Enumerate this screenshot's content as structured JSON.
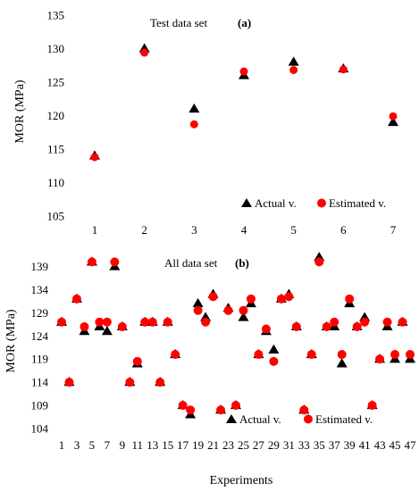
{
  "chart_data": [
    {
      "type": "scatter",
      "panel_label": "(a)",
      "title": "Test data set",
      "xlabel": "",
      "ylabel": "MOR (MPa)",
      "ylim": [
        105,
        135
      ],
      "yticks": [
        105,
        110,
        115,
        120,
        125,
        130,
        135
      ],
      "x": [
        1,
        2,
        3,
        4,
        5,
        6,
        7
      ],
      "xticks": [
        "1",
        "2",
        "3",
        "4",
        "5",
        "6",
        "7"
      ],
      "grid": false,
      "legend_position": "bottom-right",
      "series": [
        {
          "name": "Actual v.",
          "marker": "triangle",
          "color": "#000000",
          "values": [
            114,
            130,
            121,
            126,
            128,
            127,
            119
          ]
        },
        {
          "name": "Estimated v.",
          "marker": "circle",
          "color": "#ff0000",
          "values": [
            113.8,
            129.4,
            118.7,
            126.6,
            126.8,
            126.9,
            119.9
          ]
        }
      ]
    },
    {
      "type": "scatter",
      "panel_label": "(b)",
      "title": "All data set",
      "xlabel": "Experiments",
      "ylabel": "MOR (MPa)",
      "ylim": [
        104,
        142
      ],
      "yticks": [
        104,
        109,
        114,
        119,
        124,
        129,
        134,
        139
      ],
      "x": [
        1,
        2,
        3,
        4,
        5,
        6,
        7,
        8,
        9,
        10,
        11,
        12,
        13,
        14,
        15,
        16,
        17,
        18,
        19,
        20,
        21,
        22,
        23,
        24,
        25,
        26,
        27,
        28,
        29,
        30,
        31,
        32,
        33,
        34,
        35,
        36,
        37,
        38,
        39,
        40,
        41,
        42,
        43,
        44,
        45,
        46,
        47
      ],
      "xticks": [
        "1",
        "3",
        "5",
        "7",
        "9",
        "11",
        "13",
        "15",
        "17",
        "19",
        "21",
        "23",
        "25",
        "27",
        "29",
        "31",
        "33",
        "35",
        "37",
        "39",
        "41",
        "43",
        "45",
        "47"
      ],
      "grid": false,
      "legend_position": "bottom-center",
      "series": [
        {
          "name": "Actual v.",
          "marker": "triangle",
          "color": "#000000",
          "values": [
            127,
            114,
            132,
            125,
            140,
            126,
            125,
            139,
            126,
            114,
            118,
            127,
            127,
            114,
            127,
            120,
            109,
            107,
            131,
            128,
            133,
            108,
            130,
            109,
            128,
            131,
            120,
            125,
            121,
            132,
            133,
            126,
            108,
            120,
            141,
            126,
            126,
            118,
            131,
            126,
            128,
            109,
            119,
            126,
            119,
            127,
            119
          ]
        },
        {
          "name": "Estimated v.",
          "marker": "circle",
          "color": "#ff0000",
          "values": [
            127,
            114,
            132,
            126,
            140,
            127,
            127,
            140,
            126,
            114,
            118.5,
            127,
            127,
            114,
            127,
            120,
            109,
            108,
            129.5,
            127,
            132.5,
            108,
            129.5,
            109,
            129.5,
            132,
            120,
            125.5,
            118.5,
            132,
            132.5,
            126,
            108,
            120,
            140,
            126,
            127,
            120,
            132,
            126,
            127,
            109,
            119,
            127,
            120,
            127,
            120
          ]
        }
      ]
    }
  ]
}
